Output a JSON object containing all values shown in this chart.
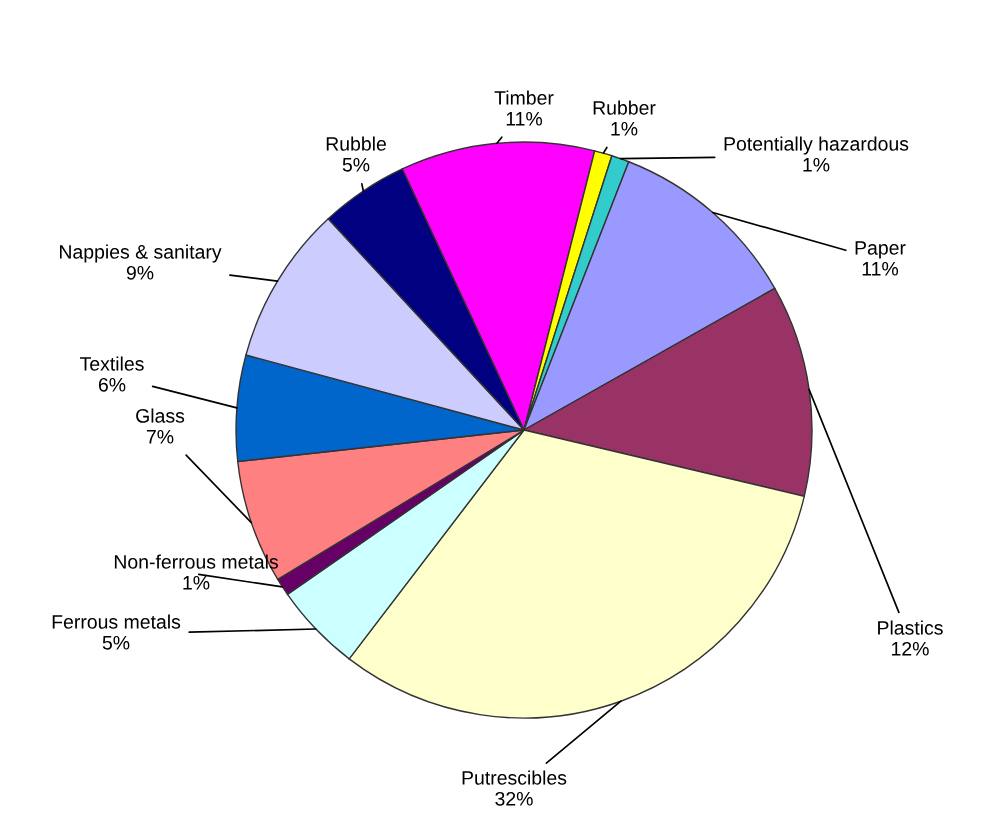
{
  "chart_data": {
    "type": "pie",
    "categories": [
      "Timber",
      "Rubber",
      "Potentially hazardous",
      "Paper",
      "Plastics",
      "Putrescibles",
      "Ferrous metals",
      "Non-ferrous metals",
      "Glass",
      "Textiles",
      "Nappies & sanitary",
      "Rubble"
    ],
    "values": [
      11,
      1,
      1,
      11,
      12,
      32,
      5,
      1,
      7,
      6,
      9,
      5
    ],
    "colors": [
      "#ff00ff",
      "#ffff00",
      "#33cccc",
      "#9999ff",
      "#993366",
      "#ffffcc",
      "#ccffff",
      "#660066",
      "#ff8080",
      "#0066cc",
      "#ccccff",
      "#000080"
    ],
    "value_labels": [
      "11%",
      "1%",
      "1%",
      "11%",
      "12%",
      "32%",
      "5%",
      "1%",
      "7%",
      "6%",
      "9%",
      "5%"
    ],
    "legend": false
  }
}
